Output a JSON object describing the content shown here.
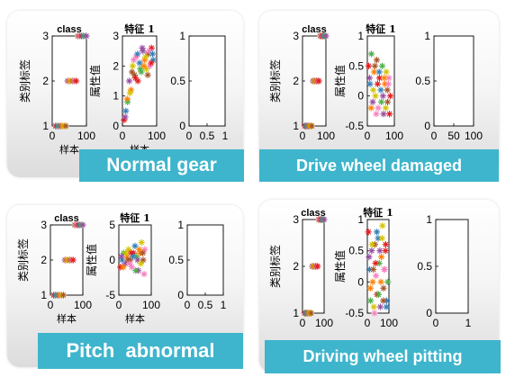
{
  "panels": [
    {
      "caption": "Normal gear",
      "plots": [
        {
          "title": "class",
          "ylabel": "类别标签",
          "xlabel": "样本",
          "yticks": [
            "1",
            "2",
            "3"
          ],
          "xticks": [
            "0",
            "100"
          ],
          "ylim": [
            1,
            3
          ],
          "xlim": [
            0,
            100
          ],
          "series": [
            {
              "x": [
                10,
                15,
                20,
                25,
                30,
                35,
                40
              ],
              "y": [
                1,
                1,
                1,
                1,
                1,
                1,
                1
              ]
            },
            {
              "x": [
                45,
                50,
                55,
                60,
                65,
                70
              ],
              "y": [
                2,
                2,
                2,
                2,
                2,
                2
              ]
            },
            {
              "x": [
                75,
                80,
                85,
                90,
                95,
                100
              ],
              "y": [
                3,
                3,
                3,
                3,
                3,
                3
              ]
            }
          ]
        },
        {
          "title": "特征 1",
          "ylabel": "属性值",
          "xlabel": "样本",
          "yticks": [
            "0",
            "1",
            "2",
            "3"
          ],
          "xticks": [
            "0",
            "100"
          ],
          "ylim": [
            0,
            3
          ],
          "xlim": [
            0,
            100
          ],
          "series": [
            {
              "x": [
                5,
                10,
                15,
                20,
                25,
                30,
                35,
                40,
                45,
                50,
                55,
                60,
                65,
                70,
                75,
                80,
                85,
                90
              ],
              "y": [
                0.2,
                0.5,
                0.8,
                1.5,
                1.2,
                2.0,
                1.7,
                2.3,
                1.5,
                2.1,
                1.8,
                2.5,
                2.2,
                1.9,
                2.4,
                2.0,
                2.6,
                2.2
              ]
            },
            {
              "x": [
                8,
                14,
                22,
                28,
                33,
                38,
                44,
                52,
                58,
                63,
                68,
                74,
                78,
                84,
                88
              ],
              "y": [
                0.3,
                0.9,
                1.1,
                1.8,
                2.2,
                1.6,
                2.4,
                1.9,
                2.6,
                2.0,
                2.3,
                1.7,
                2.5,
                2.1,
                2.4
              ]
            }
          ]
        },
        {
          "title": "",
          "ylabel": "",
          "xlabel": "",
          "yticks": [
            "0",
            "0.5",
            "1"
          ],
          "xticks": [
            "0",
            "0.5",
            "1"
          ],
          "ylim": [
            0,
            1
          ],
          "xlim": [
            0,
            1
          ],
          "series": []
        }
      ]
    },
    {
      "caption": "Drive wheel damaged",
      "plots": [
        {
          "title": "class",
          "ylabel": "类别标签",
          "xlabel": "",
          "yticks": [
            "1",
            "2",
            "3"
          ],
          "xticks": [
            "0",
            "100"
          ],
          "ylim": [
            1,
            3
          ],
          "xlim": [
            0,
            100
          ],
          "series": [
            {
              "x": [
                10,
                15,
                20,
                25,
                30,
                35,
                40
              ],
              "y": [
                1,
                1,
                1,
                1,
                1,
                1,
                1
              ]
            },
            {
              "x": [
                45,
                50,
                55,
                60,
                65,
                70
              ],
              "y": [
                2,
                2,
                2,
                2,
                2,
                2
              ]
            },
            {
              "x": [
                75,
                80,
                85,
                90,
                95,
                100
              ],
              "y": [
                3,
                3,
                3,
                3,
                3,
                3
              ]
            }
          ]
        },
        {
          "title": "特征 1",
          "ylabel": "属性值",
          "xlabel": "",
          "yticks": [
            "-0.5",
            "0",
            "0.5",
            "1"
          ],
          "xticks": [
            "0",
            "100"
          ],
          "ylim": [
            -0.5,
            1
          ],
          "xlim": [
            0,
            100
          ],
          "series": [
            {
              "x": [
                5,
                10,
                15,
                20,
                25,
                30,
                35,
                40,
                45,
                50,
                55,
                60,
                65,
                70,
                75,
                80,
                85
              ],
              "y": [
                0.5,
                0.2,
                0.7,
                -0.1,
                0.4,
                0.0,
                0.6,
                -0.2,
                0.3,
                0.1,
                0.5,
                -0.3,
                0.2,
                0.4,
                -0.1,
                0.3,
                0.0
              ]
            },
            {
              "x": [
                8,
                14,
                22,
                28,
                33,
                38,
                44,
                52,
                58,
                63,
                68,
                74,
                78,
                82
              ],
              "y": [
                0.3,
                -0.2,
                0.1,
                0.5,
                -0.3,
                0.2,
                0.4,
                -0.1,
                0.0,
                0.3,
                -0.2,
                0.1,
                0.2,
                -0.3
              ]
            }
          ]
        },
        {
          "title": "",
          "ylabel": "",
          "xlabel": "",
          "yticks": [
            "0",
            "0.5",
            "1"
          ],
          "xticks": [
            "0",
            "50",
            "100"
          ],
          "ylim": [
            0,
            1
          ],
          "xlim": [
            0,
            100
          ],
          "series": []
        }
      ]
    },
    {
      "caption": "Pitch  abnormal",
      "plots": [
        {
          "title": "class",
          "ylabel": "类别标签",
          "xlabel": "样本",
          "yticks": [
            "1",
            "2",
            "3"
          ],
          "xticks": [
            "0",
            "100"
          ],
          "ylim": [
            1,
            3
          ],
          "xlim": [
            0,
            100
          ],
          "series": [
            {
              "x": [
                10,
                15,
                20,
                25,
                30,
                35,
                40
              ],
              "y": [
                1,
                1,
                1,
                1,
                1,
                1,
                1
              ]
            },
            {
              "x": [
                45,
                50,
                55,
                60,
                65,
                70
              ],
              "y": [
                2,
                2,
                2,
                2,
                2,
                2
              ]
            },
            {
              "x": [
                75,
                80,
                85,
                90,
                95,
                100
              ],
              "y": [
                3,
                3,
                3,
                3,
                3,
                3
              ]
            }
          ]
        },
        {
          "title": "特征 1",
          "ylabel": "属性值",
          "xlabel": "样本",
          "yticks": [
            "-5",
            "0",
            "5"
          ],
          "xticks": [
            "0",
            "100"
          ],
          "ylim": [
            -5,
            5
          ],
          "xlim": [
            0,
            100
          ],
          "series": [
            {
              "x": [
                5,
                10,
                15,
                20,
                25,
                30,
                35,
                40,
                45,
                50,
                55,
                60,
                65,
                70,
                75,
                80
              ],
              "y": [
                -1,
                0,
                1,
                -0.5,
                0.5,
                1.5,
                0,
                -1,
                1,
                2,
                0.5,
                -1.5,
                1,
                2.5,
                0,
                1.5
              ]
            },
            {
              "x": [
                8,
                14,
                22,
                28,
                33,
                38,
                44,
                52,
                58,
                63,
                68,
                74,
                78
              ],
              "y": [
                0.5,
                -1,
                1,
                0,
                -0.5,
                1,
                0.5,
                -1.5,
                0,
                1.5,
                -0.5,
                1,
                -2
              ]
            }
          ]
        },
        {
          "title": "",
          "ylabel": "",
          "xlabel": "",
          "yticks": [
            "0",
            "0.5",
            "1"
          ],
          "xticks": [
            "0",
            "0.5",
            "1"
          ],
          "ylim": [
            0,
            1
          ],
          "xlim": [
            0,
            1
          ],
          "series": []
        }
      ]
    },
    {
      "caption": "Driving wheel pitting",
      "plots": [
        {
          "title": "class",
          "ylabel": "类别标签",
          "xlabel": "",
          "yticks": [
            "1",
            "2",
            "3"
          ],
          "xticks": [
            "0",
            "100"
          ],
          "ylim": [
            1,
            3
          ],
          "xlim": [
            0,
            100
          ],
          "series": [
            {
              "x": [
                10,
                15,
                20,
                25,
                30,
                35,
                40
              ],
              "y": [
                1,
                1,
                1,
                1,
                1,
                1,
                1
              ]
            },
            {
              "x": [
                45,
                50,
                55,
                60,
                65,
                70
              ],
              "y": [
                2,
                2,
                2,
                2,
                2,
                2
              ]
            },
            {
              "x": [
                75,
                80,
                85,
                90,
                95,
                100
              ],
              "y": [
                3,
                3,
                3,
                3,
                3,
                3
              ]
            }
          ]
        },
        {
          "title": "特征 1",
          "ylabel": "属性值",
          "xlabel": "",
          "yticks": [
            "-0.5",
            "0",
            "0.5",
            "1"
          ],
          "xticks": [
            "0",
            "100"
          ],
          "ylim": [
            -0.5,
            1
          ],
          "xlim": [
            0,
            100
          ],
          "series": [
            {
              "x": [
                5,
                10,
                15,
                20,
                25,
                30,
                35,
                40,
                45,
                50,
                55,
                60,
                65,
                70,
                75,
                80,
                85,
                90,
                95
              ],
              "y": [
                0.8,
                0.2,
                -0.3,
                0.5,
                0.0,
                -0.4,
                0.6,
                0.1,
                -0.2,
                0.7,
                0.3,
                -0.4,
                0.4,
                0.9,
                -0.1,
                0.2,
                0.6,
                -0.3,
                0.0
              ]
            },
            {
              "x": [
                8,
                14,
                22,
                28,
                33,
                38,
                44,
                52,
                58,
                63,
                68,
                74,
                78,
                84,
                88
              ],
              "y": [
                0.4,
                -0.1,
                0.6,
                0.2,
                -0.5,
                0.3,
                0.8,
                -0.2,
                0.5,
                0.0,
                0.7,
                -0.3,
                0.2,
                0.5,
                -0.4
              ]
            }
          ]
        },
        {
          "title": "",
          "ylabel": "",
          "xlabel": "",
          "yticks": [
            "0",
            "0.5",
            "1"
          ],
          "xticks": [
            "0",
            "1"
          ],
          "ylim": [
            0,
            1
          ],
          "xlim": [
            0,
            1
          ],
          "series": []
        }
      ]
    }
  ],
  "colors": {
    "caption_bg": "#3eb5cc",
    "caption_text": "#ffffff",
    "marker_palette": [
      "#e41a1c",
      "#377eb8",
      "#4daf4a",
      "#984ea3",
      "#ff7f00",
      "#d4c200",
      "#a65628",
      "#f781bf"
    ]
  }
}
